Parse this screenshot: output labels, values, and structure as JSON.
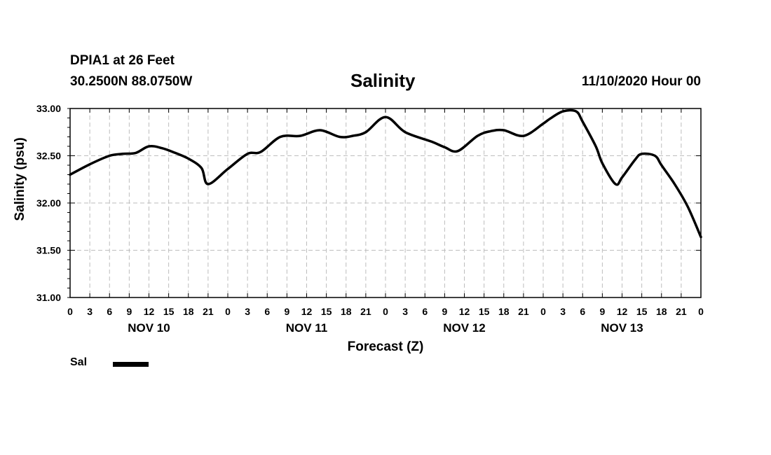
{
  "header": {
    "station": "DPIA1 at 26 Feet",
    "coords": "30.2500N 88.0750W",
    "title": "Salinity",
    "datetime": "11/10/2020 Hour 00"
  },
  "chart_data": {
    "type": "line",
    "title": "Salinity",
    "xlabel": "Forecast (Z)",
    "ylabel": "Salinity (psu)",
    "ylim": [
      31.0,
      33.0
    ],
    "yticks": [
      "31.00",
      "31.50",
      "32.00",
      "32.50",
      "33.00"
    ],
    "xlim": [
      0,
      96
    ],
    "xtick_step_hours": 3,
    "xtick_labels": [
      "0",
      "3",
      "6",
      "9",
      "12",
      "15",
      "18",
      "21",
      "0",
      "3",
      "6",
      "9",
      "12",
      "15",
      "18",
      "21",
      "0",
      "3",
      "6",
      "9",
      "12",
      "15",
      "18",
      "21",
      "0",
      "3",
      "6",
      "9",
      "12",
      "15",
      "18",
      "21",
      "0"
    ],
    "days": [
      {
        "label": "NOV 10",
        "center_hour": 12
      },
      {
        "label": "NOV 11",
        "center_hour": 36
      },
      {
        "label": "NOV 12",
        "center_hour": 60
      },
      {
        "label": "NOV 13",
        "center_hour": 84
      }
    ],
    "grid": true,
    "legend": "bottom-left",
    "series": [
      {
        "name": "Sal",
        "color": "#000000",
        "x": [
          0,
          3,
          6,
          8,
          10,
          12,
          14,
          16,
          18,
          20,
          21,
          24,
          27,
          29,
          32,
          35,
          38,
          41,
          43,
          45,
          48,
          51,
          55,
          57,
          59,
          62,
          64,
          66,
          69,
          72,
          73,
          75,
          77,
          78,
          80,
          81,
          83,
          84,
          86,
          87,
          89,
          90,
          92,
          94,
          96
        ],
        "values": [
          32.3,
          32.41,
          32.5,
          32.52,
          32.53,
          32.6,
          32.58,
          32.53,
          32.47,
          32.37,
          32.2,
          32.36,
          32.52,
          32.54,
          32.7,
          32.71,
          32.77,
          32.7,
          32.71,
          32.75,
          32.91,
          32.75,
          32.65,
          32.59,
          32.55,
          32.71,
          32.76,
          32.77,
          32.71,
          32.84,
          32.89,
          32.97,
          32.97,
          32.86,
          32.6,
          32.42,
          32.2,
          32.27,
          32.46,
          32.52,
          32.5,
          32.4,
          32.2,
          31.96,
          31.64
        ]
      }
    ]
  }
}
